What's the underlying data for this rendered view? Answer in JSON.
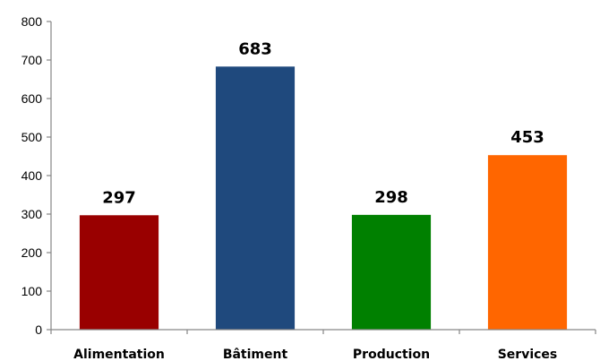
{
  "chart_data": {
    "type": "bar",
    "title": "",
    "xlabel": "",
    "ylabel": "",
    "categories": [
      "Alimentation",
      "Bâtiment",
      "Production",
      "Services"
    ],
    "values": [
      297,
      683,
      298,
      453
    ],
    "data_labels": [
      "297",
      "683",
      "298",
      "453"
    ],
    "colors": [
      "#990000",
      "#1f497d",
      "#008000",
      "#ff6600"
    ],
    "ylim": [
      0,
      800
    ],
    "yticks": [
      0,
      100,
      200,
      300,
      400,
      500,
      600,
      700,
      800
    ],
    "ytick_labels": [
      "0",
      "100",
      "200",
      "300",
      "400",
      "500",
      "600",
      "700",
      "800"
    ],
    "grid": false,
    "legend": "none"
  }
}
